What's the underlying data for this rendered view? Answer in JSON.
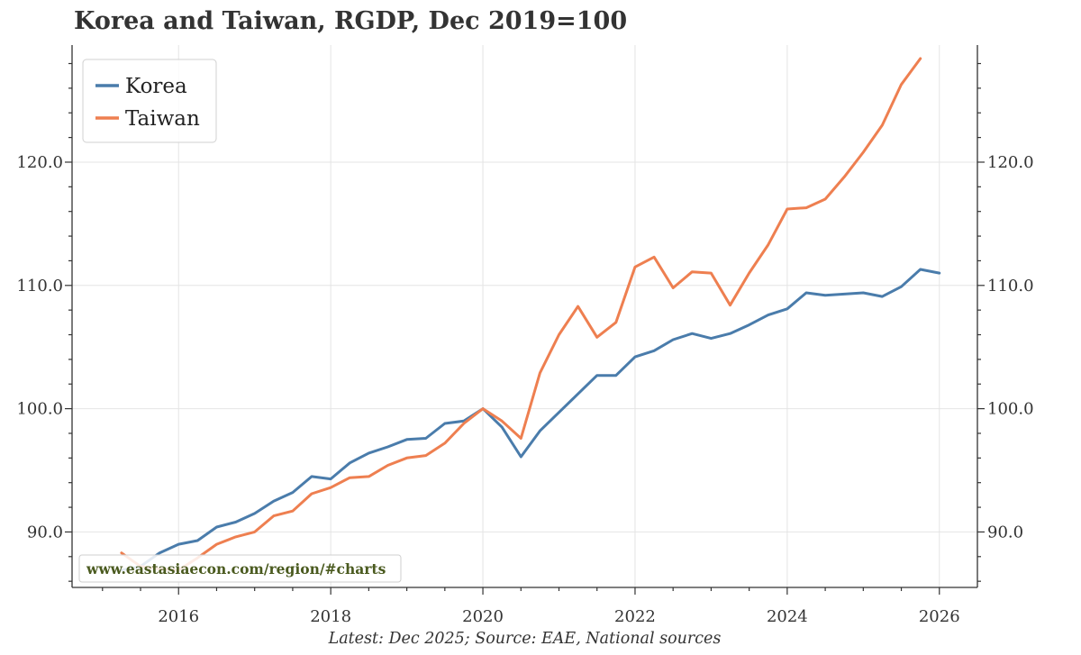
{
  "title": "Korea and Taiwan, RGDP, Dec 2019=100",
  "footer": "Latest: Dec 2025; Source: EAE, National sources",
  "watermark": "www.eastasiaecon.com/region/#charts",
  "colors": {
    "korea": "#4a7cab",
    "taiwan": "#ee7f50",
    "grid": "#e4e4e4",
    "axis": "#333333"
  },
  "chart_data": {
    "type": "line",
    "title": "Korea and Taiwan, RGDP, Dec 2019=100",
    "xlabel": "",
    "ylabel": "",
    "xlim": [
      2014.6,
      2026.5
    ],
    "ylim": [
      85.5,
      129.5
    ],
    "x_ticks": [
      2016,
      2018,
      2020,
      2022,
      2024,
      2026
    ],
    "x_tick_labels": [
      "2016",
      "2018",
      "2020",
      "2022",
      "2024",
      "2026"
    ],
    "y_ticks": [
      90,
      100,
      110,
      120
    ],
    "y_tick_labels": [
      "90.0",
      "100.0",
      "110.0",
      "120.0"
    ],
    "y_axis_both_sides": true,
    "grid": true,
    "legend_position": "top-left",
    "series": [
      {
        "name": "Korea",
        "color": "#4a7cab",
        "x": [
          2015.25,
          2015.5,
          2015.75,
          2016.0,
          2016.25,
          2016.5,
          2016.75,
          2017.0,
          2017.25,
          2017.5,
          2017.75,
          2018.0,
          2018.25,
          2018.5,
          2018.75,
          2019.0,
          2019.25,
          2019.5,
          2019.75,
          2020.0,
          2020.25,
          2020.5,
          2020.75,
          2021.0,
          2021.25,
          2021.5,
          2021.75,
          2022.0,
          2022.25,
          2022.5,
          2022.75,
          2023.0,
          2023.25,
          2023.5,
          2023.75,
          2024.0,
          2024.25,
          2024.5,
          2024.75,
          2025.0,
          2025.25,
          2025.5,
          2025.75,
          2026.0
        ],
        "y": [
          86.9,
          87.2,
          88.3,
          89.0,
          89.3,
          90.4,
          90.8,
          91.5,
          92.5,
          93.2,
          94.5,
          94.3,
          95.6,
          96.4,
          96.9,
          97.5,
          97.6,
          98.8,
          99.0,
          100.0,
          98.5,
          96.1,
          98.2,
          99.7,
          101.2,
          102.7,
          102.7,
          104.2,
          104.7,
          105.6,
          106.1,
          105.7,
          106.1,
          106.8,
          107.6,
          108.1,
          109.4,
          109.2,
          109.3,
          109.4,
          109.1,
          109.9,
          111.3,
          111.0
        ]
      },
      {
        "name": "Taiwan",
        "color": "#ee7f50",
        "x": [
          2015.25,
          2015.5,
          2015.75,
          2016.0,
          2016.25,
          2016.5,
          2016.75,
          2017.0,
          2017.25,
          2017.5,
          2017.75,
          2018.0,
          2018.25,
          2018.5,
          2018.75,
          2019.0,
          2019.25,
          2019.5,
          2019.75,
          2020.0,
          2020.25,
          2020.5,
          2020.75,
          2021.0,
          2021.25,
          2021.5,
          2021.75,
          2022.0,
          2022.25,
          2022.5,
          2022.75,
          2023.0,
          2023.25,
          2023.5,
          2023.75,
          2024.0,
          2024.25,
          2024.5,
          2024.75,
          2025.0,
          2025.25,
          2025.5,
          2025.75
        ],
        "y": [
          88.3,
          87.2,
          87.0,
          86.9,
          87.9,
          89.0,
          89.6,
          90.0,
          91.3,
          91.7,
          93.1,
          93.6,
          94.4,
          94.5,
          95.4,
          96.0,
          96.2,
          97.2,
          98.8,
          100.0,
          99.0,
          97.6,
          102.9,
          106.0,
          108.3,
          105.8,
          107.0,
          111.5,
          112.3,
          109.8,
          111.1,
          111.0,
          108.4,
          111.0,
          113.3,
          116.2,
          116.3,
          117.0,
          118.8,
          120.8,
          123.0,
          126.3,
          128.4
        ]
      }
    ]
  }
}
